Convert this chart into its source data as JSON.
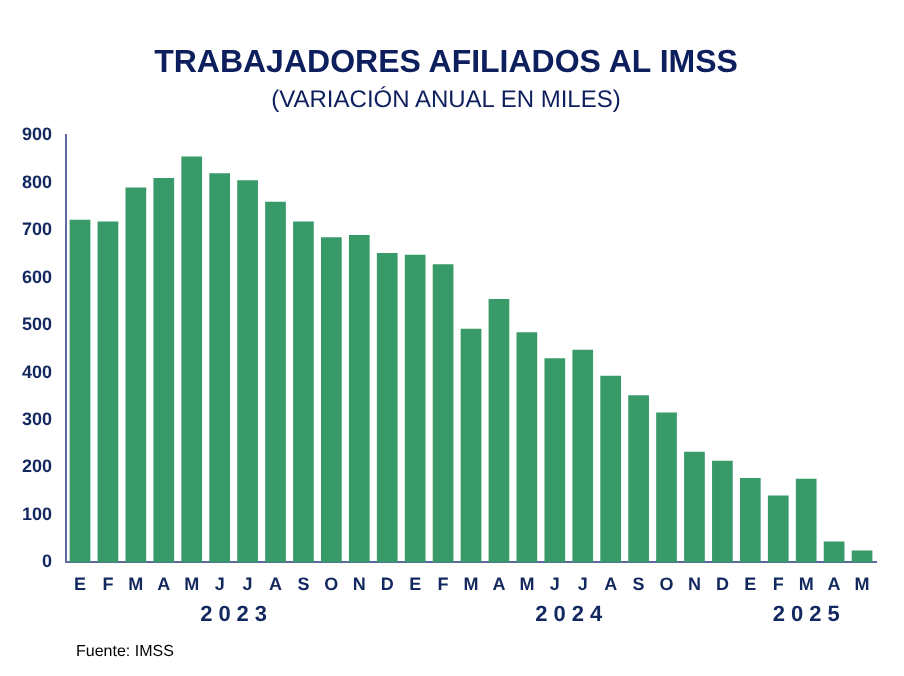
{
  "chart_data": {
    "type": "bar",
    "title": "TRABAJADORES AFILIADOS AL IMSS",
    "subtitle": "(VARIACIÓN ANUAL EN MILES)",
    "categories": [
      "E",
      "F",
      "M",
      "A",
      "M",
      "J",
      "J",
      "A",
      "S",
      "O",
      "N",
      "D",
      "E",
      "F",
      "M",
      "A",
      "M",
      "J",
      "J",
      "A",
      "S",
      "O",
      "N",
      "D",
      "E",
      "F",
      "M",
      "A",
      "M"
    ],
    "values": [
      722,
      718,
      790,
      810,
      855,
      820,
      805,
      760,
      718,
      685,
      690,
      652,
      648,
      628,
      492,
      555,
      485,
      430,
      448,
      393,
      352,
      316,
      233,
      214,
      178,
      141,
      176,
      44,
      25
    ],
    "color": "#379a68",
    "ylim": [
      0,
      900
    ],
    "yticks": [
      0,
      100,
      200,
      300,
      400,
      500,
      600,
      700,
      800,
      900
    ],
    "grid": false,
    "legend": false,
    "annotations": [
      "2023",
      "2024",
      "2025",
      "Fuente: IMSS"
    ]
  }
}
